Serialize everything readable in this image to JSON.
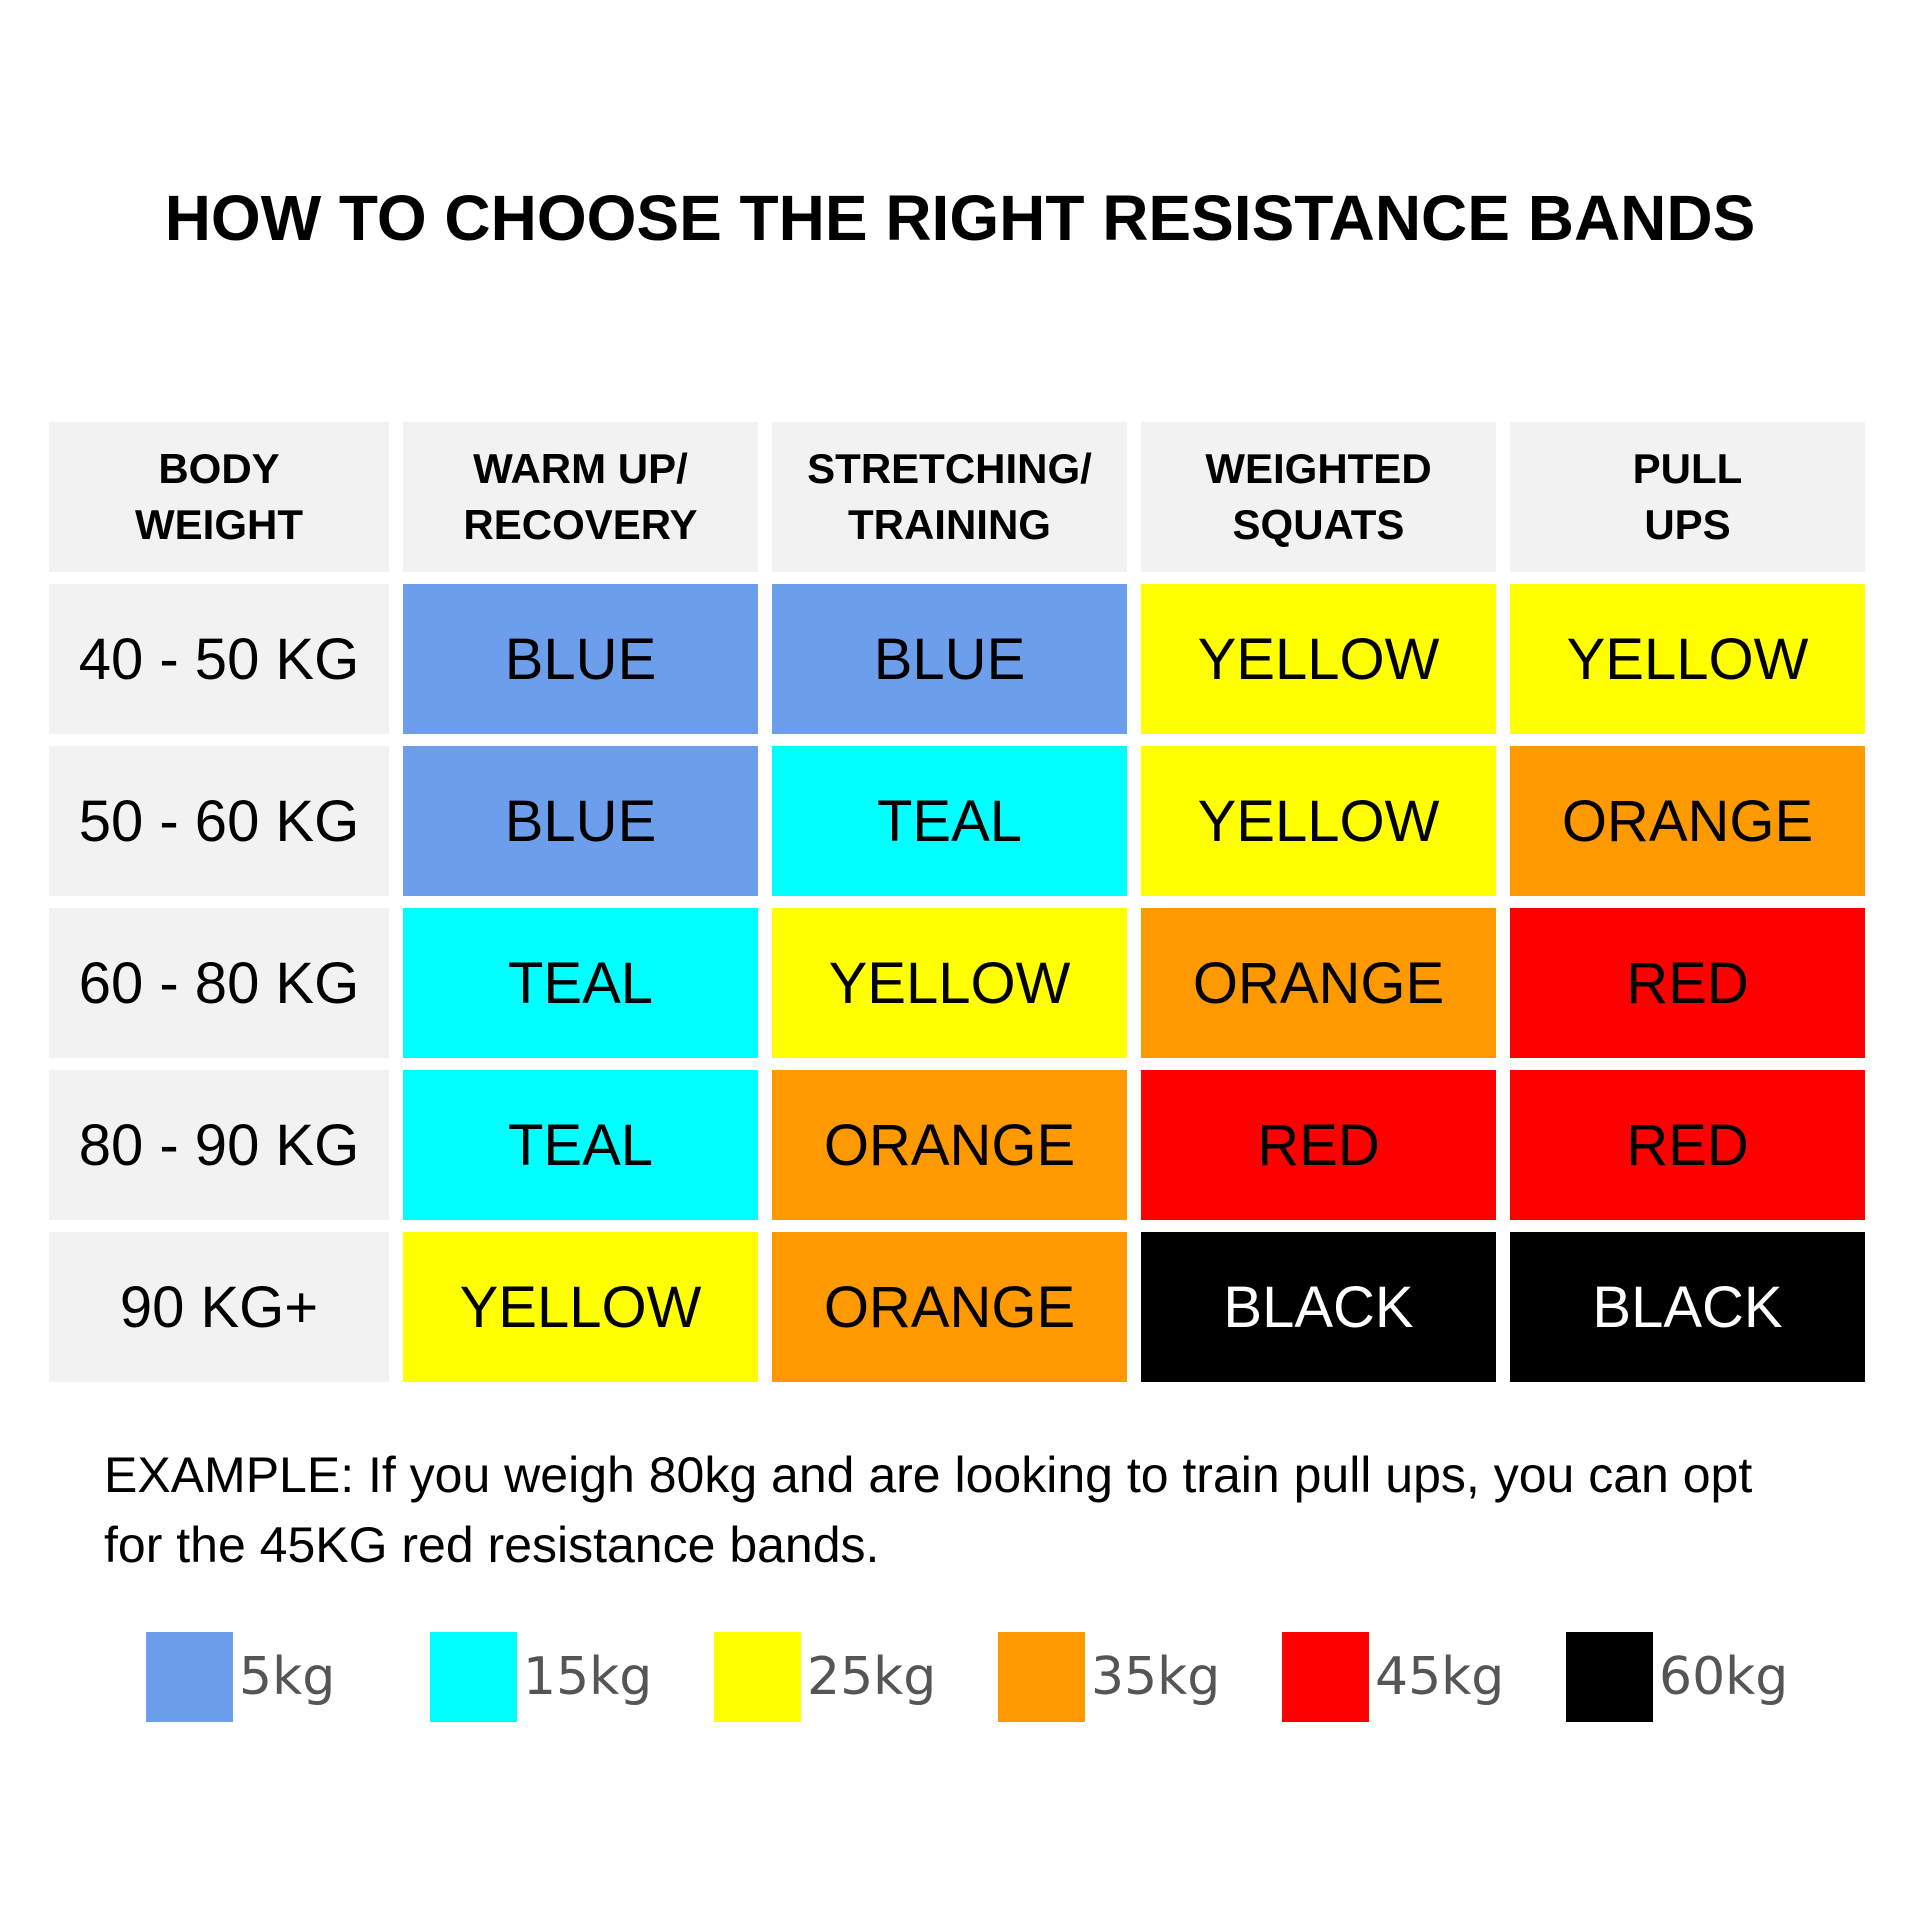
{
  "title": "HOW TO CHOOSE THE RIGHT RESISTANCE BANDS",
  "colors": {
    "BLUE": "#6d9eeb",
    "TEAL": "#00ffff",
    "YELLOW": "#ffff00",
    "ORANGE": "#ff9900",
    "RED": "#ff0000",
    "BLACK": "#000000"
  },
  "table": {
    "headers": [
      [
        "BODY",
        "WEIGHT"
      ],
      [
        "WARM UP/",
        "RECOVERY"
      ],
      [
        "STRETCHING/",
        "TRAINING"
      ],
      [
        "WEIGHTED",
        "SQUATS"
      ],
      [
        "PULL",
        "UPS"
      ]
    ],
    "rows": [
      {
        "weight": "40 - 50 KG",
        "bands": [
          "BLUE",
          "BLUE",
          "YELLOW",
          "YELLOW"
        ]
      },
      {
        "weight": "50 - 60 KG",
        "bands": [
          "BLUE",
          "TEAL",
          "YELLOW",
          "ORANGE"
        ]
      },
      {
        "weight": "60 - 80 KG",
        "bands": [
          "TEAL",
          "YELLOW",
          "ORANGE",
          "RED"
        ]
      },
      {
        "weight": "80 - 90 KG",
        "bands": [
          "TEAL",
          "ORANGE",
          "RED",
          "RED"
        ]
      },
      {
        "weight": "90 KG+",
        "bands": [
          "YELLOW",
          "ORANGE",
          "BLACK",
          "BLACK"
        ]
      }
    ]
  },
  "example": "EXAMPLE: If you weigh 80kg and are looking to train pull ups, you can opt for the 45KG red resistance bands.",
  "legend": [
    {
      "label": "5kg",
      "color": "#6d9eeb"
    },
    {
      "label": "15kg",
      "color": "#00ffff"
    },
    {
      "label": "25kg",
      "color": "#ffff00"
    },
    {
      "label": "35kg",
      "color": "#ff9900"
    },
    {
      "label": "45kg",
      "color": "#ff0000"
    },
    {
      "label": "60kg",
      "color": "#000000"
    }
  ]
}
